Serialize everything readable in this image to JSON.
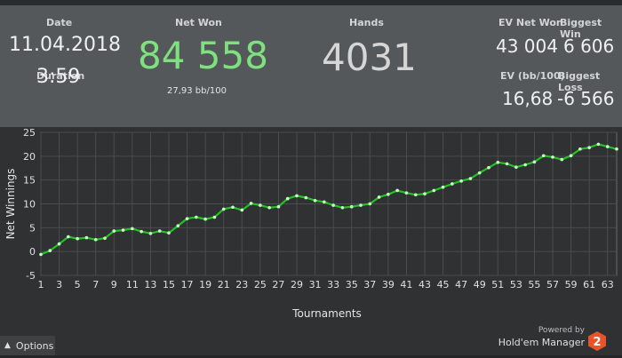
{
  "stats": {
    "date_label": "Date",
    "date_value": "11.04.2018",
    "duration_label": "Duration",
    "duration_value": "3:59",
    "net_won_label": "Net Won",
    "net_won_value": "84 558",
    "net_won_sub": "27,93 bb/100",
    "hands_label": "Hands",
    "hands_value": "4031",
    "ev_net_won_label": "EV Net Won",
    "ev_net_won_value": "43 004",
    "biggest_win_label": "Biggest Win",
    "biggest_win_value": "6 606",
    "ev_bb_label": "EV (bb/100)",
    "ev_bb_value": "16,68",
    "biggest_loss_label": "Biggest Loss",
    "biggest_loss_value": "-6 566"
  },
  "colors": {
    "accent_green": "#7ee07e",
    "line_green": "#22c422",
    "point_green": "#c8ffc8",
    "logo_orange": "#e8542a"
  },
  "chart_data": {
    "type": "line",
    "xlabel": "Tournaments",
    "ylabel": "Net Winnings",
    "xlim": [
      1,
      64
    ],
    "ylim": [
      -5,
      25
    ],
    "yticks": [
      -5,
      0,
      5,
      10,
      15,
      20,
      25
    ],
    "xticks": [
      1,
      3,
      5,
      7,
      9,
      11,
      13,
      15,
      17,
      19,
      21,
      23,
      25,
      27,
      29,
      31,
      33,
      35,
      37,
      39,
      41,
      43,
      45,
      47,
      49,
      51,
      53,
      55,
      57,
      59,
      61,
      63
    ],
    "grid": true,
    "x": [
      1,
      2,
      3,
      4,
      5,
      6,
      7,
      8,
      9,
      10,
      11,
      12,
      13,
      14,
      15,
      16,
      17,
      18,
      19,
      20,
      21,
      22,
      23,
      24,
      25,
      26,
      27,
      28,
      29,
      30,
      31,
      32,
      33,
      34,
      35,
      36,
      37,
      38,
      39,
      40,
      41,
      42,
      43,
      44,
      45,
      46,
      47,
      48,
      49,
      50,
      51,
      52,
      53,
      54,
      55,
      56,
      57,
      58,
      59,
      60,
      61,
      62,
      63,
      64
    ],
    "values": [
      -0.6,
      0.2,
      1.6,
      3.1,
      2.7,
      2.9,
      2.5,
      2.8,
      4.3,
      4.5,
      4.8,
      4.2,
      3.8,
      4.3,
      3.9,
      5.4,
      6.9,
      7.2,
      6.8,
      7.2,
      8.9,
      9.3,
      8.7,
      10.1,
      9.7,
      9.2,
      9.4,
      11.1,
      11.7,
      11.3,
      10.7,
      10.4,
      9.7,
      9.2,
      9.4,
      9.7,
      10.0,
      11.4,
      12.0,
      12.8,
      12.3,
      11.9,
      12.1,
      12.8,
      13.5,
      14.2,
      14.8,
      15.3,
      16.5,
      17.6,
      18.7,
      18.4,
      17.7,
      18.2,
      18.8,
      20.1,
      19.8,
      19.3,
      20.1,
      21.5,
      21.8,
      22.5,
      22.0,
      21.5
    ]
  },
  "footer": {
    "options_label": "Options",
    "powered_by": "Powered by",
    "brand": "Hold'em Manager",
    "logo_digit": "2"
  }
}
